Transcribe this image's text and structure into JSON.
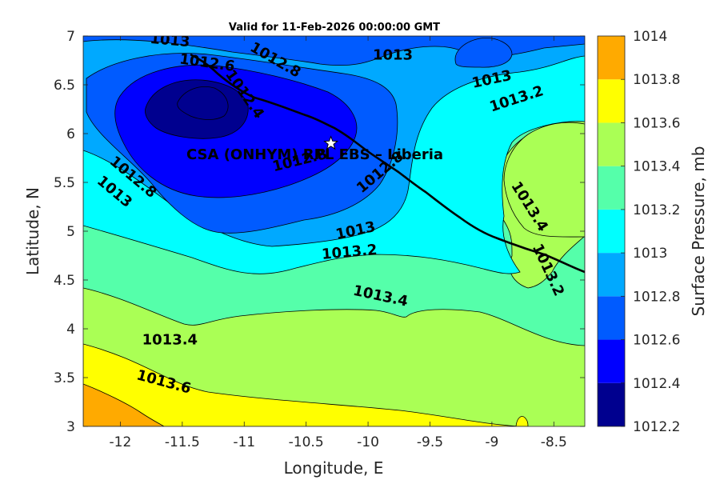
{
  "chart_data": {
    "type": "contour",
    "title": "Valid for 11-Feb-2026 00:00:00 GMT",
    "xlabel": "Longitude, E",
    "ylabel": "Latitude, N",
    "xlim": [
      -12.3,
      -8.25
    ],
    "ylim": [
      3,
      7
    ],
    "xticks": [
      -12,
      -11.5,
      -11,
      -10.5,
      -10,
      -9.5,
      -9,
      -8.5
    ],
    "yticks": [
      3,
      3.5,
      4,
      4.5,
      5,
      5.5,
      6,
      6.5,
      7
    ],
    "xtick_labels": [
      "-12",
      "-11.5",
      "-11",
      "-10.5",
      "-10",
      "-9.5",
      "-9",
      "-8.5"
    ],
    "ytick_labels": [
      "3",
      "3.5",
      "4",
      "4.5",
      "5",
      "5.5",
      "6",
      "6.5",
      "7"
    ],
    "colorbar": {
      "label": "Surface Pressure, mb",
      "levels": [
        1012.2,
        1012.4,
        1012.6,
        1012.8,
        1013,
        1013.2,
        1013.4,
        1013.6,
        1013.8,
        1014
      ],
      "tick_labels": [
        "1012.2",
        "1012.4",
        "1012.6",
        "1012.8",
        "1013",
        "1013.2",
        "1013.4",
        "1013.6",
        "1013.8",
        "1014"
      ],
      "colors": [
        "#00008f",
        "#0000ff",
        "#005bff",
        "#00a9ff",
        "#00ffff",
        "#55ffaa",
        "#aaff55",
        "#ffff00",
        "#ffaa00",
        "#ff5500"
      ]
    },
    "station": {
      "name": "CSA (ONHYM) RPL EBS  – Liberia",
      "lon": -10.3,
      "lat": 5.9,
      "marker": "star"
    },
    "contour_labels": [
      {
        "text": "1013",
        "lon": -11.6,
        "lat": 6.95,
        "rot": 5
      },
      {
        "text": "1012.6",
        "lon": -11.3,
        "lat": 6.72,
        "rot": 8
      },
      {
        "text": "1012.8",
        "lon": -10.75,
        "lat": 6.75,
        "rot": 30
      },
      {
        "text": "1012.4",
        "lon": -11.0,
        "lat": 6.4,
        "rot": 55
      },
      {
        "text": "1013",
        "lon": -9.8,
        "lat": 6.8,
        "rot": 0
      },
      {
        "text": "1013",
        "lon": -9.0,
        "lat": 6.55,
        "rot": -12
      },
      {
        "text": "1013.2",
        "lon": -8.8,
        "lat": 6.35,
        "rot": -18
      },
      {
        "text": "1012.8",
        "lon": -10.55,
        "lat": 5.72,
        "rot": -14
      },
      {
        "text": "1012.8",
        "lon": -9.9,
        "lat": 5.6,
        "rot": -40
      },
      {
        "text": "1012.8",
        "lon": -11.9,
        "lat": 5.55,
        "rot": 40
      },
      {
        "text": "1013",
        "lon": -12.05,
        "lat": 5.4,
        "rot": 40
      },
      {
        "text": "1013",
        "lon": -10.1,
        "lat": 5.0,
        "rot": -12
      },
      {
        "text": "1013.2",
        "lon": -10.15,
        "lat": 4.78,
        "rot": -5
      },
      {
        "text": "1013.4",
        "lon": -8.7,
        "lat": 5.25,
        "rot": 58
      },
      {
        "text": "1013.2",
        "lon": -8.55,
        "lat": 4.6,
        "rot": 65
      },
      {
        "text": "1013.4",
        "lon": -9.9,
        "lat": 4.33,
        "rot": 12
      },
      {
        "text": "1013.4",
        "lon": -11.6,
        "lat": 3.88,
        "rot": 0
      },
      {
        "text": "1013.6",
        "lon": -11.65,
        "lat": 3.45,
        "rot": 15
      }
    ]
  }
}
